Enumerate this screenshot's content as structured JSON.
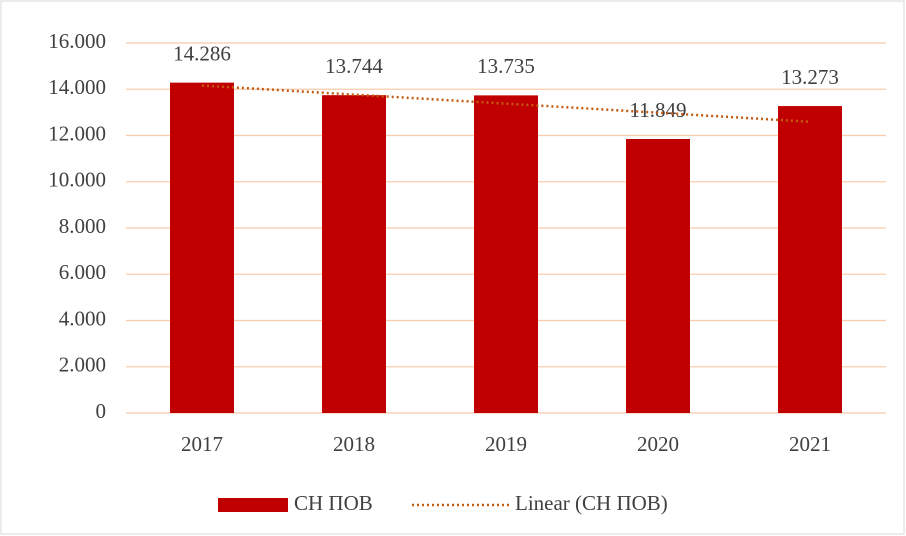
{
  "chart_data": {
    "type": "bar",
    "categories": [
      "2017",
      "2018",
      "2019",
      "2020",
      "2021"
    ],
    "series": [
      {
        "name": "СН ПОВ",
        "color": "#c00000",
        "values": [
          14286,
          13744,
          13735,
          11849,
          13273
        ],
        "value_labels": [
          "14.286",
          "13.744",
          "13.735",
          "11.849",
          "13.273"
        ]
      }
    ],
    "trendline": {
      "type": "linear",
      "name": "Linear (СН ПОВ)",
      "color": "#c55a11"
    },
    "ylim": [
      0,
      16000
    ],
    "yticks": [
      0,
      {
        "value": 2000,
        "label": "2.000"
      },
      {
        "value": 4000,
        "label": "4.000"
      },
      {
        "value": 6000,
        "label": "6.000"
      },
      {
        "value": 8000,
        "label": "8.000"
      },
      {
        "value": 10000,
        "label": "10.000"
      },
      {
        "value": 12000,
        "label": "12.000"
      },
      {
        "value": 14000,
        "label": "14.000"
      },
      {
        "value": 16000,
        "label": "16.000"
      }
    ],
    "grid": true,
    "legend": "bottom"
  }
}
